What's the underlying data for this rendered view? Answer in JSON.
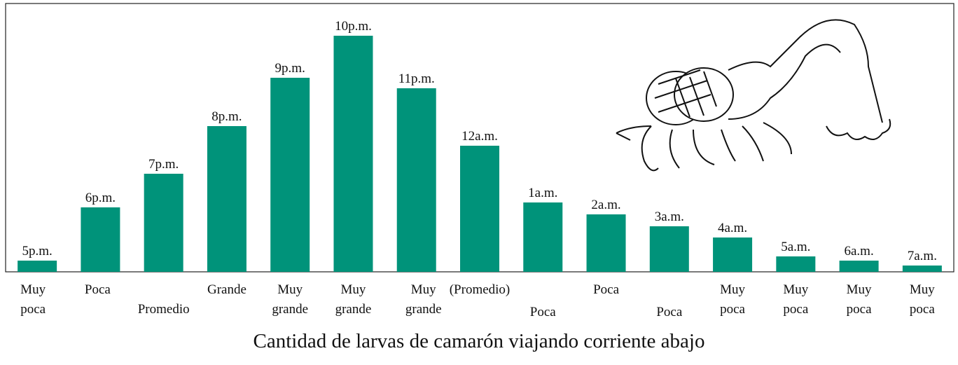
{
  "chart_data": {
    "type": "bar",
    "title": "Cantidad de larvas de camarón viajando corriente abajo",
    "categories": [
      "5p.m.",
      "6p.m.",
      "7p.m.",
      "8p.m.",
      "9p.m.",
      "10p.m.",
      "11p.m.",
      "12a.m.",
      "1a.m.",
      "2a.m.",
      "3a.m.",
      "4a.m.",
      "5a.m.",
      "6a.m.",
      "7a.m."
    ],
    "amount_labels": [
      [
        "Muy",
        "poca"
      ],
      [
        "Poca"
      ],
      [
        "Promedio"
      ],
      [
        "Grande"
      ],
      [
        "Muy",
        "grande"
      ],
      [
        "Muy",
        "grande"
      ],
      [
        "Muy",
        "grande"
      ],
      [
        "(Promedio)"
      ],
      [
        "Poca"
      ],
      [
        "Poca"
      ],
      [
        "Poca"
      ],
      [
        "Muy",
        "poca"
      ],
      [
        "Muy",
        "poca"
      ],
      [
        "Muy",
        "poca"
      ],
      [
        "Muy",
        "poca"
      ]
    ],
    "values": [
      16,
      92,
      140,
      208,
      277,
      337,
      262,
      180,
      99,
      82,
      65,
      49,
      22,
      16,
      9
    ],
    "color": "#00937a",
    "ylim": [
      0,
      383
    ]
  }
}
